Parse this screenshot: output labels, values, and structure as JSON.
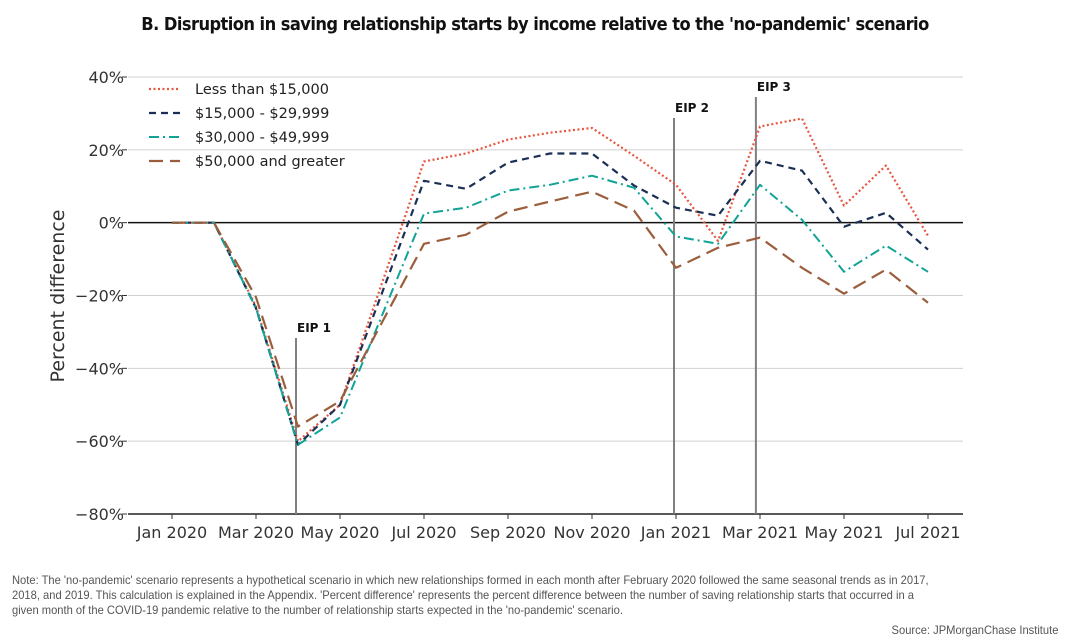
{
  "chart_data": {
    "type": "line",
    "title": "B. Disruption in saving relationship starts by income relative to the 'no-pandemic' scenario",
    "xlabel": "",
    "ylabel": "Percent difference",
    "ylim": [
      -80,
      40
    ],
    "yticks": [
      40,
      20,
      0,
      -20,
      -40,
      -60,
      -80
    ],
    "ytick_labels": [
      "40%",
      "20%",
      "0%",
      "−20%",
      "−40%",
      "−60%",
      "−80%"
    ],
    "x": [
      "Jan 2020",
      "Feb 2020",
      "Mar 2020",
      "Apr 2020",
      "May 2020",
      "Jun 2020",
      "Jul 2020",
      "Aug 2020",
      "Sep 2020",
      "Oct 2020",
      "Nov 2020",
      "Dec 2020",
      "Jan 2021",
      "Feb 2021",
      "Mar 2021",
      "Apr 2021",
      "May 2021",
      "Jun 2021",
      "Jul 2021"
    ],
    "xtick_labels": [
      "Jan 2020",
      "Mar 2020",
      "May 2020",
      "Jul 2020",
      "Sep 2020",
      "Nov 2020",
      "Jan 2021",
      "Mar 2021",
      "May 2021",
      "Jul 2021"
    ],
    "xtick_indices": [
      0,
      2,
      4,
      6,
      8,
      10,
      12,
      14,
      16,
      18
    ],
    "grid": true,
    "legend_position": "top-left",
    "series": [
      {
        "name": "Less than $15,000",
        "color": "#e8553f",
        "style": "dotted",
        "values": [
          0,
          0,
          -23,
          -60,
          -50,
          -16.6,
          16.8,
          19,
          22.8,
          24.7,
          26,
          18.4,
          10.4,
          -5,
          26.4,
          28.6,
          4.7,
          15.7,
          -3.6
        ]
      },
      {
        "name": "$15,000 - $29,999",
        "color": "#1b2f55",
        "style": "dashed",
        "values": [
          0,
          0,
          -23.5,
          -61,
          -50,
          -19.3,
          11.5,
          9.3,
          16.5,
          19,
          19,
          10.2,
          4.1,
          1.9,
          17,
          14.3,
          -1.1,
          2.7,
          -7.4
        ]
      },
      {
        "name": "$30,000 - $49,999",
        "color": "#11a396",
        "style": "dashdot",
        "values": [
          0,
          0,
          -23.5,
          -61,
          -53.5,
          -25.5,
          2.5,
          4.1,
          8.8,
          10.4,
          12.9,
          9.6,
          -3.8,
          -5.8,
          10.4,
          0.8,
          -13.5,
          -6.3,
          -13.5
        ]
      },
      {
        "name": "$50,000 and greater",
        "color": "#9b5e3c",
        "style": "longdash",
        "values": [
          0,
          0,
          -20.5,
          -56,
          -49,
          -27.4,
          -5.8,
          -3.3,
          3,
          5.8,
          8.5,
          3.3,
          -12.4,
          -6.9,
          -4.1,
          -12.4,
          -19.5,
          -12.9,
          -22
        ]
      }
    ],
    "annotations": [
      {
        "label": "EIP 1",
        "x_index": 3.0
      },
      {
        "label": "EIP 2",
        "x_index": 12.0
      },
      {
        "label": "EIP 3",
        "x_index": 13.95
      }
    ]
  },
  "footer": {
    "note": "Note: The 'no-pandemic' scenario represents a hypothetical scenario in which new relationships formed in each month after February 2020 followed the same seasonal trends as in 2017, 2018, and 2019. This calculation is explained in the Appendix. 'Percent difference' represents the percent difference between the number of saving relationship starts that occurred in a given month of the COVID-19 pandemic relative to the number of relationship starts expected in the 'no-pandemic' scenario.",
    "source": "Source: JPMorganChase Institute"
  }
}
